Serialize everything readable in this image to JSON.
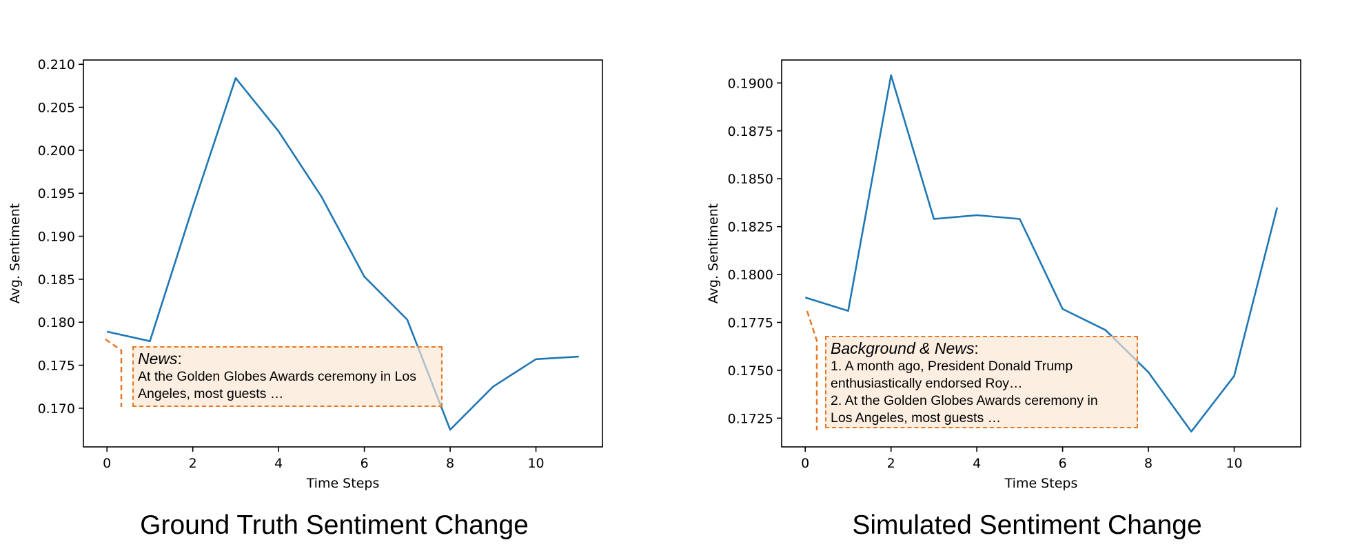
{
  "chart_data": [
    {
      "type": "line",
      "title": "",
      "caption": "Ground Truth Sentiment Change",
      "xlabel": "Time Steps",
      "ylabel": "Avg. Sentiment",
      "xlim": [
        -0.55,
        11.55
      ],
      "ylim": [
        0.1655,
        0.2105
      ],
      "xticks": [
        0,
        2,
        4,
        6,
        8,
        10
      ],
      "xtick_labels": [
        "0",
        "2",
        "4",
        "6",
        "8",
        "10"
      ],
      "yticks": [
        0.17,
        0.175,
        0.18,
        0.185,
        0.19,
        0.195,
        0.2,
        0.205,
        0.21
      ],
      "ytick_labels": [
        "0.170",
        "0.175",
        "0.180",
        "0.185",
        "0.190",
        "0.195",
        "0.200",
        "0.205",
        "0.210"
      ],
      "grid": false,
      "color": "#1f77b4",
      "series": [
        {
          "x": [
            0,
            1,
            2,
            3,
            4,
            5,
            6,
            7,
            8,
            9,
            10,
            11
          ],
          "values": [
            0.1789,
            0.1778,
            0.1934,
            0.2084,
            0.2022,
            0.1946,
            0.1853,
            0.1803,
            0.1675,
            0.1725,
            0.1757,
            0.176
          ]
        }
      ],
      "annotation": {
        "label": "News",
        "colon": ":",
        "lines": [
          "At the Golden Globes Awards ceremony in Los",
          "Angeles, most guests …"
        ],
        "border_color": "#e87722"
      }
    },
    {
      "type": "line",
      "title": "",
      "caption": "Simulated Sentiment Change",
      "xlabel": "Time Steps",
      "ylabel": "Avg. Sentiment",
      "xlim": [
        -0.55,
        11.55
      ],
      "ylim": [
        0.171,
        0.1912
      ],
      "xticks": [
        0,
        2,
        4,
        6,
        8,
        10
      ],
      "xtick_labels": [
        "0",
        "2",
        "4",
        "6",
        "8",
        "10"
      ],
      "yticks": [
        0.1725,
        0.175,
        0.1775,
        0.18,
        0.1825,
        0.185,
        0.1875,
        0.19
      ],
      "ytick_labels": [
        "0.1725",
        "0.1750",
        "0.1775",
        "0.1800",
        "0.1825",
        "0.1850",
        "0.1875",
        "0.1900"
      ],
      "grid": false,
      "color": "#1f77b4",
      "series": [
        {
          "x": [
            0,
            1,
            2,
            3,
            4,
            5,
            6,
            7,
            8,
            9,
            10,
            11
          ],
          "values": [
            0.1788,
            0.1781,
            0.1904,
            0.1829,
            0.1831,
            0.1829,
            0.1782,
            0.1771,
            0.1749,
            0.1718,
            0.1747,
            0.1835
          ]
        }
      ],
      "annotation": {
        "label": "Background & News",
        "colon": ":",
        "lines": [
          "1. A month ago, President Donald Trump",
          "enthusiastically endorsed Roy…",
          "2. At the Golden Globes Awards ceremony in",
          "Los Angeles, most guests …"
        ],
        "border_color": "#e87722"
      }
    }
  ]
}
